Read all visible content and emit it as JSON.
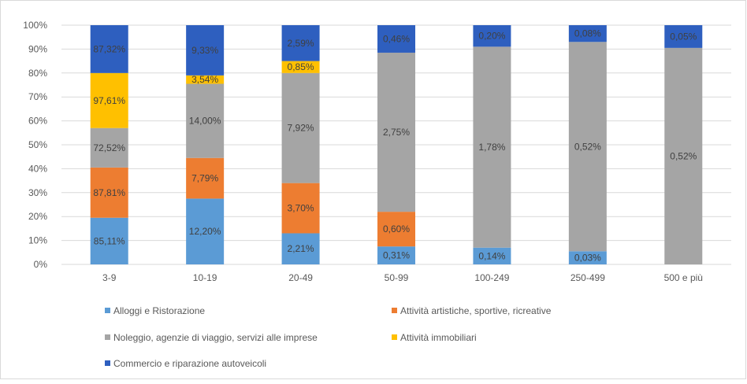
{
  "chart_data": {
    "type": "bar",
    "stacked": true,
    "normalized": true,
    "categories": [
      "3-9",
      "10-19",
      "20-49",
      "50-99",
      "100-249",
      "250-499",
      "500 e più"
    ],
    "ylim": [
      0,
      100
    ],
    "y_ticks": [
      "0%",
      "10%",
      "20%",
      "30%",
      "40%",
      "50%",
      "60%",
      "70%",
      "80%",
      "90%",
      "100%"
    ],
    "grid": true,
    "legend_position": "bottom",
    "series": [
      {
        "name": "Alloggi e Ristorazione",
        "color": "#5B9BD5",
        "values": [
          19.5,
          27.5,
          13,
          7.5,
          7,
          5.5,
          0
        ],
        "labels": [
          "85,11%",
          "12,20%",
          "2,21%",
          "0,31%",
          "0,14%",
          "0,03%",
          ""
        ]
      },
      {
        "name": "Attività artistiche, sportive, ricreative",
        "color": "#ED7D31",
        "values": [
          21,
          17,
          21,
          14.5,
          0,
          0,
          0
        ],
        "labels": [
          "87,81%",
          "7,79%",
          "3,70%",
          "0,60%",
          "",
          "",
          ""
        ]
      },
      {
        "name": "Noleggio, agenzie di viaggio, servizi alle imprese",
        "color": "#A5A5A5",
        "values": [
          16.5,
          31,
          46,
          66.5,
          84,
          87.5,
          90.5
        ],
        "labels": [
          "72,52%",
          "14,00%",
          "7,92%",
          "2,75%",
          "1,78%",
          "0,52%",
          "0,52%"
        ]
      },
      {
        "name": "Attività immobiliari",
        "color": "#FFC000",
        "values": [
          23,
          3.5,
          5,
          0,
          0,
          0,
          0
        ],
        "labels": [
          "97,61%",
          "3,54%",
          "0,85%",
          "",
          "",
          "",
          ""
        ]
      },
      {
        "name": "Commercio e riparazione autoveicoli",
        "color": "#2E5FBF",
        "values": [
          20,
          21,
          15,
          11.5,
          9,
          7,
          9.5
        ],
        "labels": [
          "87,32%",
          "9,33%",
          "2,59%",
          "0,46%",
          "0,20%",
          "0,08%",
          "0,05%"
        ]
      }
    ]
  }
}
